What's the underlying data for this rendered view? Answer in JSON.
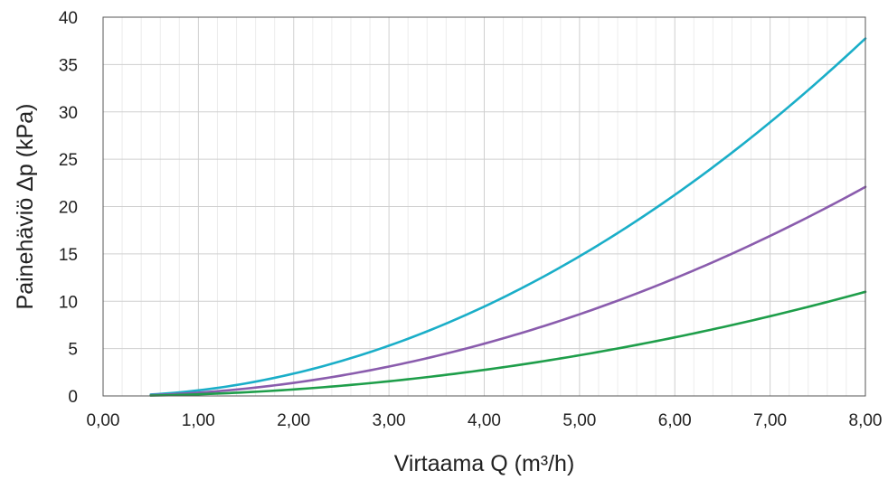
{
  "chart_data": {
    "type": "line",
    "title": "",
    "xlabel": "Virtaama Q (m³/h)",
    "ylabel": "Painehäviö Δp (kPa)",
    "xlim": [
      0,
      8
    ],
    "ylim": [
      0,
      40
    ],
    "x_ticks": [
      "0,00",
      "1,00",
      "2,00",
      "3,00",
      "4,00",
      "5,00",
      "6,00",
      "7,00",
      "8,00"
    ],
    "y_ticks": [
      "0",
      "5",
      "10",
      "15",
      "20",
      "25",
      "30",
      "35",
      "40"
    ],
    "grid": true,
    "minor_grid_x": true,
    "legend": "none",
    "series": [
      {
        "color": "#1aaec8",
        "x": [
          0.5,
          1,
          2,
          3,
          4,
          5,
          6,
          7,
          8
        ],
        "y": [
          0.15,
          0.59,
          2.36,
          5.3,
          9.4,
          14.7,
          21.2,
          28.9,
          37.8
        ]
      },
      {
        "color": "#8a5cad",
        "x": [
          0.5,
          1,
          2,
          3,
          4,
          5,
          6,
          7,
          8
        ],
        "y": [
          0.09,
          0.35,
          1.38,
          3.1,
          5.5,
          8.6,
          12.4,
          16.9,
          22.1
        ]
      },
      {
        "color": "#1e9e4a",
        "x": [
          0.5,
          1,
          2,
          3,
          4,
          5,
          6,
          7,
          8
        ],
        "y": [
          0.04,
          0.17,
          0.69,
          1.55,
          2.75,
          4.3,
          6.2,
          8.4,
          11.0
        ]
      }
    ]
  }
}
